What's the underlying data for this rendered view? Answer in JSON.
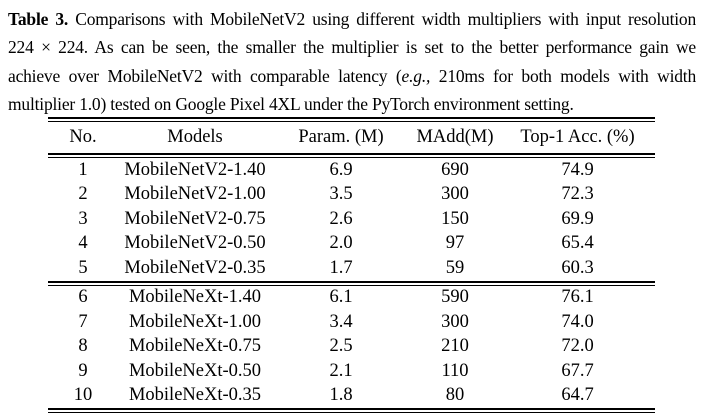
{
  "page": {
    "background_color": "#ffffff",
    "text_color": "#000000"
  },
  "caption": {
    "line1": {
      "bold": "Table 3.",
      "rest": " Comparisons with MobileNetV2 using different width multipliers with input resolution"
    },
    "line2": "224 × 224. As can be seen, the smaller the multiplier is set to the better performance gain we",
    "line3": {
      "pre": "achieve over MobileNetV2 with comparable latency (",
      "italic": "e.g.,",
      "post": " 210ms for both models with width"
    },
    "line4": "multiplier 1.0) tested on Google Pixel 4XL under the PyTorch environment setting."
  },
  "table": {
    "columns": {
      "no": "No.",
      "models": "Models",
      "params": "Param. (M)",
      "madd": "MAdd(M)",
      "top1": "Top-1 Acc. (%)"
    },
    "section1": {
      "rows": [
        [
          "1",
          "MobileNetV2-1.40",
          "6.9",
          "690",
          "74.9"
        ],
        [
          "2",
          "MobileNetV2-1.00",
          "3.5",
          "300",
          "72.3"
        ],
        [
          "3",
          "MobileNetV2-0.75",
          "2.6",
          "150",
          "69.9"
        ],
        [
          "4",
          "MobileNetV2-0.50",
          "2.0",
          "97",
          "65.4"
        ],
        [
          "5",
          "MobileNetV2-0.35",
          "1.7",
          "59",
          "60.3"
        ]
      ]
    },
    "section2": {
      "rows": [
        [
          "6",
          "MobileNeXt-1.40",
          "6.1",
          "590",
          "76.1"
        ],
        [
          "7",
          "MobileNeXt-1.00",
          "3.4",
          "300",
          "74.0"
        ],
        [
          "8",
          "MobileNeXt-0.75",
          "2.5",
          "210",
          "72.0"
        ],
        [
          "9",
          "MobileNeXt-0.50",
          "2.1",
          "110",
          "67.7"
        ],
        [
          "10",
          "MobileNeXt-0.35",
          "1.8",
          "80",
          "64.7"
        ]
      ]
    }
  }
}
